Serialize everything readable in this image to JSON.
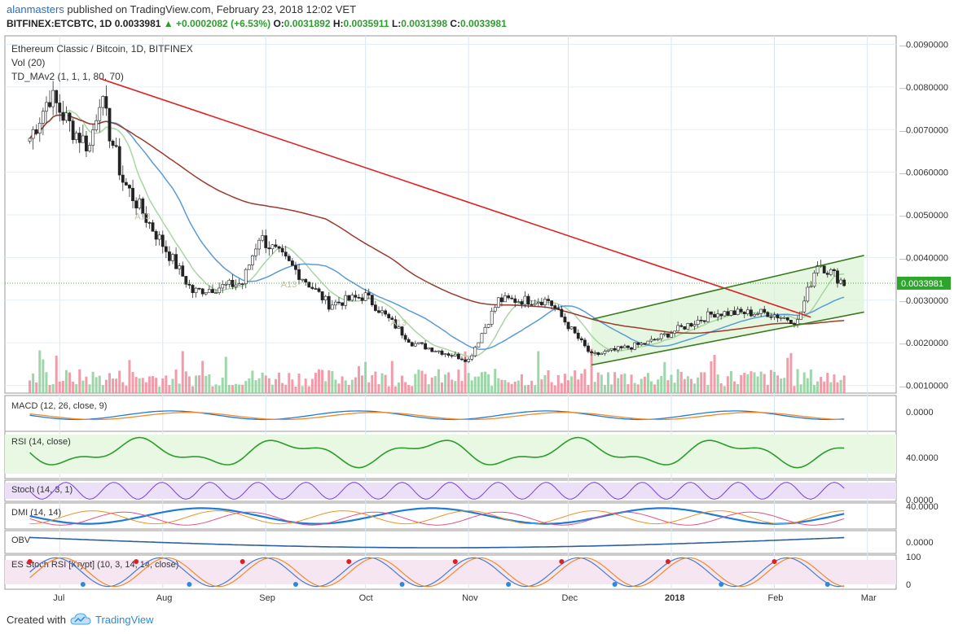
{
  "header": {
    "user": "alanmasters",
    "published_text": " published on TradingView.com, February 23, 2018 12:02 VET",
    "symbol_line": "BITFINEX:ETCBTC, 1D",
    "last": "0.0033981",
    "arrow": "▲",
    "change": "+0.0002082 (+6.53%)",
    "o_label": "O:",
    "o": "0.0031892",
    "h_label": "H:",
    "h": "0.0035911",
    "l_label": "L:",
    "l": "0.0031398",
    "c_label": "C:",
    "c": "0.0033981"
  },
  "footer": {
    "created_with": "Created with",
    "brand": "TradingView"
  },
  "colors": {
    "up": "#5a8f5a",
    "down": "#cc3333",
    "ma_fast": "#a8d5a2",
    "ma_mid": "#5b9bd5",
    "ma_slow": "#9b3b2b",
    "trendline": "#e02020",
    "channel": "#3c7a1e",
    "channel_fill": "#dff5d8",
    "rsi": "#2a9d2a",
    "dmi": "#1e7bd6",
    "obv": "#2c5f9e",
    "stoch": "#7a3fd6",
    "price_label_bg": "#2da52d"
  },
  "chart_data": [
    {
      "type": "candlestick",
      "title": "Ethereum Classic / Bitcoin, 1D, BITFINEX",
      "indicators_legend": [
        "Vol (20)",
        "TD_MAv2 (1, 1, 1, 80, 70)"
      ],
      "price_axis": [
        "0.0090000",
        "0.0080000",
        "0.0070000",
        "0.0060000",
        "0.0050000",
        "0.0040000",
        "0.0030000",
        "0.0020000",
        "0.0010000"
      ],
      "ylim": [
        0.00082,
        0.0092
      ],
      "last_price_label": "0.0033981",
      "time_axis": [
        "Jul",
        "Aug",
        "Sep",
        "Oct",
        "Nov",
        "Dec",
        "2018",
        "Feb",
        "Mar"
      ],
      "approx_closes": [
        {
          "date": "Jun 22",
          "value": 0.0068
        },
        {
          "date": "Jun 28",
          "value": 0.0078
        },
        {
          "date": "Jul 5",
          "value": 0.007
        },
        {
          "date": "Jul 10",
          "value": 0.0066
        },
        {
          "date": "Jul 13",
          "value": 0.0078
        },
        {
          "date": "Jul 20",
          "value": 0.0058
        },
        {
          "date": "Jul 28",
          "value": 0.0048
        },
        {
          "date": "Aug 10",
          "value": 0.0032
        },
        {
          "date": "Aug 25",
          "value": 0.0034
        },
        {
          "date": "Aug 30",
          "value": 0.0045
        },
        {
          "date": "Sep 10",
          "value": 0.0037
        },
        {
          "date": "Sep 20",
          "value": 0.0029
        },
        {
          "date": "Oct 1",
          "value": 0.0031
        },
        {
          "date": "Oct 15",
          "value": 0.002
        },
        {
          "date": "Nov 1",
          "value": 0.0016
        },
        {
          "date": "Nov 10",
          "value": 0.003
        },
        {
          "date": "Nov 25",
          "value": 0.003
        },
        {
          "date": "Dec 8",
          "value": 0.0017
        },
        {
          "date": "Dec 25",
          "value": 0.002
        },
        {
          "date": "Jan 14",
          "value": 0.0027
        },
        {
          "date": "Jan 30",
          "value": 0.0027
        },
        {
          "date": "Feb 8",
          "value": 0.0025
        },
        {
          "date": "Feb 14",
          "value": 0.0039
        },
        {
          "date": "Feb 22",
          "value": 0.0034
        }
      ],
      "annotations": [
        "A13",
        "A13",
        "A13"
      ],
      "trendline": {
        "from": {
          "date": "Jul 13",
          "value": 0.0082
        },
        "to": {
          "date": "Feb 12",
          "value": 0.0026
        }
      },
      "channel": {
        "lower": {
          "from": {
            "date": "Dec 8",
            "value": 0.00148
          },
          "to": {
            "date": "Feb 28",
            "value": 0.00272
          }
        },
        "upper": {
          "from": {
            "date": "Dec 8",
            "value": 0.00255
          },
          "to": {
            "date": "Feb 28",
            "value": 0.00405
          }
        }
      }
    },
    {
      "type": "line",
      "title": "MACD (12, 26, close, 9)",
      "y_ticks": [
        "0.0000"
      ]
    },
    {
      "type": "line",
      "title": "RSI (14, close)",
      "y_ticks": [
        "40.0000"
      ]
    },
    {
      "type": "line",
      "title": "Stoch (14, 3, 1)",
      "y_ticks": [
        "0.0000"
      ]
    },
    {
      "type": "line",
      "title": "DMI (14, 14)",
      "y_ticks": [
        "40.0000"
      ]
    },
    {
      "type": "line",
      "title": "OBV",
      "y_ticks": [
        "0.0000"
      ]
    },
    {
      "type": "line",
      "title": "ES Stoch RSI [Krypt] (10, 3, 14, 14, close)",
      "y_ticks": [
        "100",
        "0"
      ]
    }
  ]
}
